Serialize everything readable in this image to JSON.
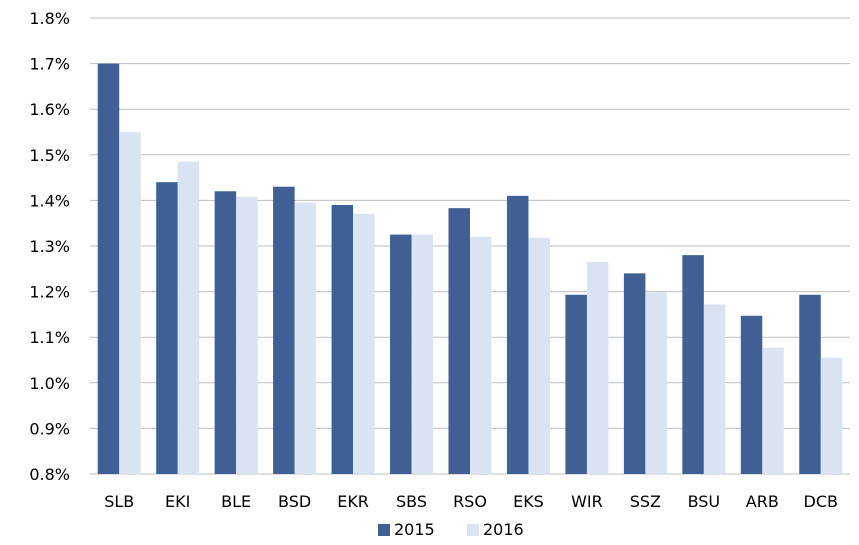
{
  "chart_data": {
    "type": "bar",
    "title": "",
    "xlabel": "",
    "ylabel": "",
    "categories": [
      "SLB",
      "EKI",
      "BLE",
      "BSD",
      "EKR",
      "SBS",
      "RSO",
      "EKS",
      "WIR",
      "SSZ",
      "BSU",
      "ARB",
      "DCB"
    ],
    "series": [
      {
        "name": "2015",
        "color": "#3f5f95",
        "values": [
          1.7,
          1.44,
          1.42,
          1.43,
          1.39,
          1.325,
          1.383,
          1.41,
          1.193,
          1.24,
          1.28,
          1.147,
          1.193
        ]
      },
      {
        "name": "2016",
        "color": "#d9e3f1",
        "values": [
          1.55,
          1.485,
          1.408,
          1.395,
          1.37,
          1.325,
          1.32,
          1.318,
          1.265,
          1.198,
          1.172,
          1.077,
          1.055
        ]
      }
    ],
    "ylim": [
      0.8,
      1.8
    ],
    "yticks": [
      "0.8%",
      "0.9%",
      "1.0%",
      "1.1%",
      "1.2%",
      "1.3%",
      "1.4%",
      "1.5%",
      "1.6%",
      "1.7%",
      "1.8%"
    ],
    "grid": true,
    "legend_position": "bottom"
  }
}
